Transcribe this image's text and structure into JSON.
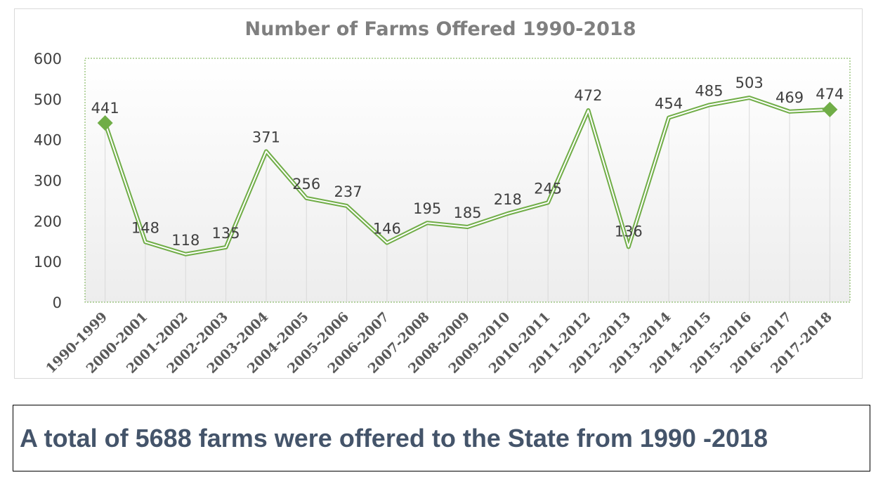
{
  "chart_data": {
    "type": "line",
    "title": "Number of Farms Offered 1990-2018",
    "xlabel": "",
    "ylabel": "",
    "ylim": [
      0,
      600
    ],
    "yticks": [
      0,
      100,
      200,
      300,
      400,
      500,
      600
    ],
    "grid": "vertical",
    "legend": "none",
    "categories": [
      "1990-1999",
      "2000-2001",
      "2001-2002",
      "2002-2003",
      "2003-2004",
      "2004-2005",
      "2005-2006",
      "2006-2007",
      "2007-2008",
      "2008-2009",
      "2009-2010",
      "2010-2011",
      "2011-2012",
      "2012-2013",
      "2013-2014",
      "2014-2015",
      "2015-2016",
      "2016-2017",
      "2017-2018"
    ],
    "series": [
      {
        "values": [
          441,
          148,
          118,
          135,
          371,
          256,
          237,
          146,
          195,
          185,
          218,
          245,
          472,
          136,
          454,
          485,
          503,
          469,
          474
        ],
        "color": "#70ad47"
      }
    ]
  },
  "caption": "A total of 5688 farms were offered to the State from 1990 -2018"
}
